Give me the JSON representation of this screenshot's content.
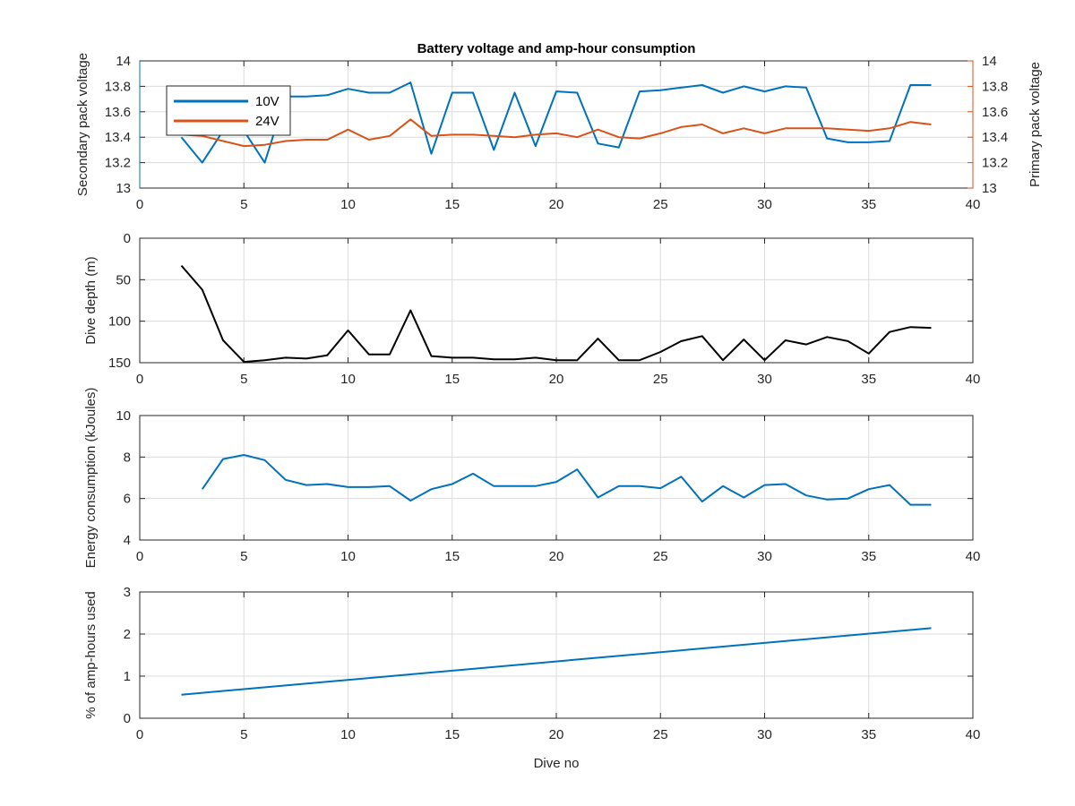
{
  "figure_title": "Battery voltage and amp-hour consumption",
  "colors": {
    "blue": "#0072BD",
    "orange": "#D95319",
    "black": "#000000"
  },
  "chart_data": [
    {
      "type": "line",
      "title": "Battery voltage and amp-hour consumption",
      "xlabel": "",
      "ylabel": "Secondary pack voltage",
      "ylabel_right": "Primary pack voltage",
      "xlim": [
        0,
        40
      ],
      "ylim": [
        13,
        14
      ],
      "ylim_right": [
        13,
        14
      ],
      "xticks": [
        "0",
        "5",
        "10",
        "15",
        "20",
        "25",
        "30",
        "35",
        "40"
      ],
      "yticks": [
        "13",
        "13.2",
        "13.4",
        "13.6",
        "13.8",
        "14"
      ],
      "yticks_right": [
        "13",
        "13.2",
        "13.4",
        "13.6",
        "13.8",
        "14"
      ],
      "grid": true,
      "legend_position": "top-left",
      "x": [
        2,
        3,
        4,
        5,
        6,
        7,
        8,
        9,
        10,
        11,
        12,
        13,
        14,
        15,
        16,
        17,
        18,
        19,
        20,
        21,
        22,
        23,
        24,
        25,
        26,
        27,
        28,
        29,
        30,
        31,
        32,
        33,
        34,
        35,
        36,
        37,
        38
      ],
      "series": [
        {
          "name": "10V",
          "axis": "left",
          "color": "#0072BD",
          "values": [
            13.4,
            13.2,
            13.45,
            13.45,
            13.2,
            13.72,
            13.72,
            13.73,
            13.78,
            13.75,
            13.75,
            13.83,
            13.27,
            13.75,
            13.75,
            13.3,
            13.75,
            13.33,
            13.76,
            13.75,
            13.35,
            13.32,
            13.76,
            13.77,
            13.79,
            13.81,
            13.75,
            13.8,
            13.76,
            13.8,
            13.79,
            13.39,
            13.36,
            13.36,
            13.37,
            13.81,
            13.81
          ]
        },
        {
          "name": "24V",
          "axis": "right",
          "color": "#D95319",
          "values": [
            13.42,
            13.41,
            13.37,
            13.33,
            13.34,
            13.37,
            13.38,
            13.38,
            13.46,
            13.38,
            13.41,
            13.54,
            13.41,
            13.42,
            13.42,
            13.41,
            13.4,
            13.42,
            13.43,
            13.4,
            13.46,
            13.4,
            13.39,
            13.43,
            13.48,
            13.5,
            13.43,
            13.47,
            13.43,
            13.47,
            13.47,
            13.47,
            13.46,
            13.45,
            13.47,
            13.52,
            13.5
          ]
        }
      ]
    },
    {
      "type": "line",
      "xlabel": "",
      "ylabel": "Dive depth (m)",
      "xlim": [
        0,
        40
      ],
      "ylim": [
        0,
        150
      ],
      "y_reversed": true,
      "xticks": [
        "0",
        "5",
        "10",
        "15",
        "20",
        "25",
        "30",
        "35",
        "40"
      ],
      "yticks": [
        "0",
        "50",
        "100",
        "150"
      ],
      "grid": true,
      "x": [
        2,
        3,
        4,
        5,
        6,
        7,
        8,
        9,
        10,
        11,
        12,
        13,
        14,
        15,
        16,
        17,
        18,
        19,
        20,
        21,
        22,
        23,
        24,
        25,
        26,
        27,
        28,
        29,
        30,
        31,
        32,
        33,
        34,
        35,
        36,
        37,
        38
      ],
      "series": [
        {
          "color": "#000000",
          "values": [
            33,
            62,
            123,
            149,
            147,
            144,
            145,
            141,
            111,
            140,
            140,
            87,
            142,
            144,
            144,
            146,
            146,
            144,
            147,
            147,
            121,
            147,
            147,
            137,
            124,
            118,
            147,
            122,
            147,
            123,
            128,
            119,
            124,
            139,
            113,
            107,
            108
          ]
        }
      ]
    },
    {
      "type": "line",
      "xlabel": "",
      "ylabel": "Energy consumption (kJoules)",
      "xlim": [
        0,
        40
      ],
      "ylim": [
        4,
        10
      ],
      "xticks": [
        "0",
        "5",
        "10",
        "15",
        "20",
        "25",
        "30",
        "35",
        "40"
      ],
      "yticks": [
        "4",
        "6",
        "8",
        "10"
      ],
      "grid": true,
      "x": [
        3,
        4,
        5,
        6,
        7,
        8,
        9,
        10,
        11,
        12,
        13,
        14,
        15,
        16,
        17,
        18,
        19,
        20,
        21,
        22,
        23,
        24,
        25,
        26,
        27,
        28,
        29,
        30,
        31,
        32,
        33,
        34,
        35,
        36,
        37,
        38
      ],
      "series": [
        {
          "color": "#0072BD",
          "values": [
            6.45,
            7.9,
            8.1,
            7.85,
            6.9,
            6.65,
            6.7,
            6.55,
            6.55,
            6.6,
            5.9,
            6.45,
            6.7,
            7.2,
            6.6,
            6.6,
            6.6,
            6.8,
            7.4,
            6.05,
            6.6,
            6.6,
            6.5,
            7.05,
            5.85,
            6.6,
            6.05,
            6.65,
            6.7,
            6.15,
            5.95,
            6.0,
            6.45,
            6.65,
            5.7,
            5.7
          ]
        }
      ]
    },
    {
      "type": "line",
      "xlabel": "Dive no",
      "ylabel": "% of amp-hours used",
      "xlim": [
        0,
        40
      ],
      "ylim": [
        0,
        3
      ],
      "xticks": [
        "0",
        "5",
        "10",
        "15",
        "20",
        "25",
        "30",
        "35",
        "40"
      ],
      "yticks": [
        "0",
        "1",
        "2",
        "3"
      ],
      "grid": true,
      "x": [
        2,
        38
      ],
      "series": [
        {
          "color": "#0072BD",
          "values": [
            0.56,
            2.14
          ]
        }
      ]
    }
  ]
}
